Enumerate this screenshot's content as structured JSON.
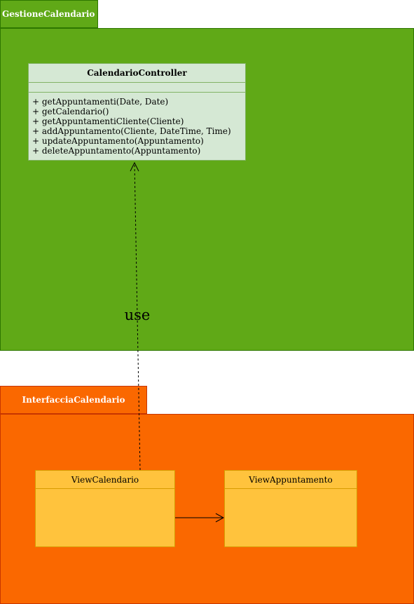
{
  "packages": {
    "gestione": {
      "name": "GestioneCalendario",
      "color": "#60a917"
    },
    "interfaccia": {
      "name": "InterfacciaCalendario",
      "color": "#fa6800"
    }
  },
  "controller": {
    "name": "CalendarioController",
    "methods": [
      "+ getAppuntamenti(Date, Date)",
      "+ getCalendario()",
      "+ getAppuntamentiCliente(Cliente)",
      "+ addAppuntamento(Cliente, DateTime, Time)",
      "+ updateAppuntamento(Appuntamento)",
      "+ deleteAppuntamento(Appuntamento)"
    ]
  },
  "views": {
    "calendario": {
      "name": "ViewCalendario"
    },
    "appuntamento": {
      "name": "ViewAppuntamento"
    }
  },
  "edges": {
    "use_label": "use"
  }
}
